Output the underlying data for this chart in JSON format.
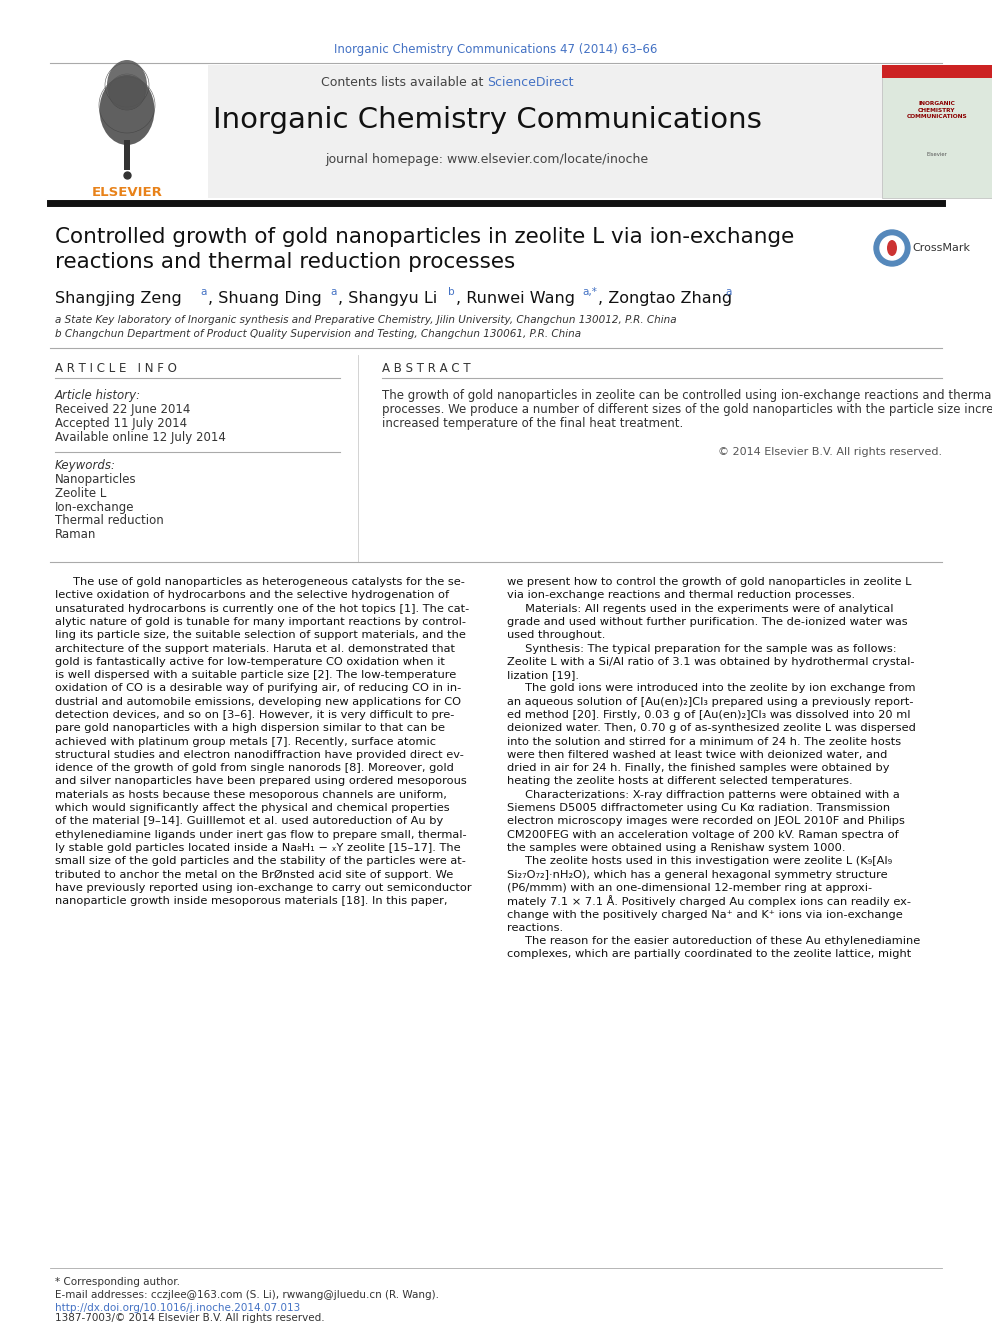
{
  "page_background": "#ffffff",
  "header_journal_text": "Inorganic Chemistry Communications 47 (2014) 63–66",
  "header_journal_color": "#4472c4",
  "header_contents_text": "Contents lists available at ",
  "header_sd_text": "ScienceDirect",
  "header_sd_color": "#4472c4",
  "journal_title": "Inorganic Chemistry Communications",
  "journal_homepage": "journal homepage: www.elsevier.com/locate/inoche",
  "header_bg_color": "#f0f0f0",
  "article_title_line1": "Controlled growth of gold nanoparticles in zeolite L via ion-exchange",
  "article_title_line2": "reactions and thermal reduction processes",
  "affil_a": "a State Key laboratory of Inorganic synthesis and Preparative Chemistry, Jilin University, Changchun 130012, P.R. China",
  "affil_b": "b Changchun Department of Product Quality Supervision and Testing, Changchun 130061, P.R. China",
  "article_info_header": "A R T I C L E   I N F O",
  "abstract_header": "A B S T R A C T",
  "article_history_label": "Article history:",
  "received": "Received 22 June 2014",
  "accepted": "Accepted 11 July 2014",
  "available": "Available online 12 July 2014",
  "keywords_label": "Keywords:",
  "keywords": [
    "Nanoparticles",
    "Zeolite L",
    "Ion-exchange",
    "Thermal reduction",
    "Raman"
  ],
  "abstract_text_lines": [
    "The growth of gold nanoparticles in zeolite can be controlled using ion-exchange reactions and thermal reduction",
    "processes. We produce a number of different sizes of the gold nanoparticles with the particle size increasing with",
    "increased temperature of the final heat treatment."
  ],
  "copyright": "© 2014 Elsevier B.V. All rights reserved.",
  "body_col1_lines": [
    "     The use of gold nanoparticles as heterogeneous catalysts for the se-",
    "lective oxidation of hydrocarbons and the selective hydrogenation of",
    "unsaturated hydrocarbons is currently one of the hot topics [1]. The cat-",
    "alytic nature of gold is tunable for many important reactions by control-",
    "ling its particle size, the suitable selection of support materials, and the",
    "architecture of the support materials. Haruta et al. demonstrated that",
    "gold is fantastically active for low-temperature CO oxidation when it",
    "is well dispersed with a suitable particle size [2]. The low-temperature",
    "oxidation of CO is a desirable way of purifying air, of reducing CO in in-",
    "dustrial and automobile emissions, developing new applications for CO",
    "detection devices, and so on [3–6]. However, it is very difficult to pre-",
    "pare gold nanoparticles with a high dispersion similar to that can be",
    "achieved with platinum group metals [7]. Recently, surface atomic",
    "structural studies and electron nanodiffraction have provided direct ev-",
    "idence of the growth of gold from single nanorods [8]. Moreover, gold",
    "and silver nanoparticles have been prepared using ordered mesoporous",
    "materials as hosts because these mesoporous channels are uniform,",
    "which would significantly affect the physical and chemical properties",
    "of the material [9–14]. Guilllemot et al. used autoreduction of Au by",
    "ethylenediamine ligands under inert gas flow to prepare small, thermal-",
    "ly stable gold particles located inside a Na₈H₁ − ₓY zeolite [15–17]. The",
    "small size of the gold particles and the stability of the particles were at-",
    "tributed to anchor the metal on the BrØnsted acid site of support. We",
    "have previously reported using ion-exchange to carry out semiconductor",
    "nanoparticle growth inside mesoporous materials [18]. In this paper,"
  ],
  "body_col2_lines": [
    "we present how to control the growth of gold nanoparticles in zeolite L",
    "via ion-exchange reactions and thermal reduction processes.",
    "     Materials: All regents used in the experiments were of analytical",
    "grade and used without further purification. The de-ionized water was",
    "used throughout.",
    "     Synthesis: The typical preparation for the sample was as follows:",
    "Zeolite L with a Si/Al ratio of 3.1 was obtained by hydrothermal crystal-",
    "lization [19].",
    "     The gold ions were introduced into the zeolite by ion exchange from",
    "an aqueous solution of [Au(en)₂]Cl₃ prepared using a previously report-",
    "ed method [20]. Firstly, 0.03 g of [Au(en)₂]Cl₃ was dissolved into 20 ml",
    "deionized water. Then, 0.70 g of as-synthesized zeolite L was dispersed",
    "into the solution and stirred for a minimum of 24 h. The zeolite hosts",
    "were then filtered washed at least twice with deionized water, and",
    "dried in air for 24 h. Finally, the finished samples were obtained by",
    "heating the zeolite hosts at different selected temperatures.",
    "     Characterizations: X-ray diffraction patterns were obtained with a",
    "Siemens D5005 diffractometer using Cu Kα radiation. Transmission",
    "electron microscopy images were recorded on JEOL 2010F and Philips",
    "CM200FEG with an acceleration voltage of 200 kV. Raman spectra of",
    "the samples were obtained using a Renishaw system 1000.",
    "     The zeolite hosts used in this investigation were zeolite L (K₉[Al₉",
    "Si₂₇O₇₂]·nH₂O), which has a general hexagonal symmetry structure",
    "(P6/mmm) with an one-dimensional 12-member ring at approxi-",
    "mately 7.1 × 7.1 Å. Positively charged Au complex ions can readily ex-",
    "change with the positively charged Na⁺ and K⁺ ions via ion-exchange",
    "reactions.",
    "     The reason for the easier autoreduction of these Au ethylenediamine",
    "complexes, which are partially coordinated to the zeolite lattice, might"
  ],
  "footer_corresponding": "* Corresponding author.",
  "footer_email": "E-mail addresses: cczjlee@163.com (S. Li), rwwang@jluedu.cn (R. Wang).",
  "footer_doi": "http://dx.doi.org/10.1016/j.inoche.2014.07.013",
  "footer_issn": "1387-7003/© 2014 Elsevier B.V. All rights reserved.",
  "doi_color": "#4472c4",
  "link_color": "#4472c4"
}
